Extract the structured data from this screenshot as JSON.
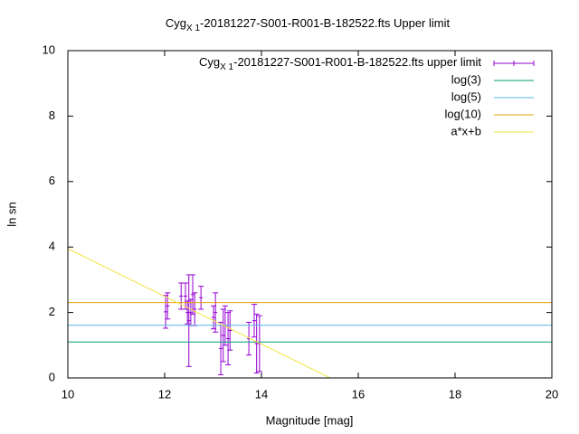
{
  "chart_data": {
    "type": "errorbar",
    "title": [
      "Cyg",
      "X 1",
      "-20181227-S001-R001-B-182522.fts Upper limit"
    ],
    "xlabel": "Magnitude [mag]",
    "ylabel": "ln sn",
    "xlim": [
      10,
      20
    ],
    "xticks": [
      10,
      12,
      14,
      16,
      18,
      20
    ],
    "ylim": [
      0,
      10
    ],
    "yticks": [
      0,
      2,
      4,
      6,
      8,
      10
    ],
    "legend": "top-right",
    "series": [
      {
        "name": [
          "Cyg",
          "X 1",
          "-20181227-S001-R001-B-182522.fts upper limit"
        ],
        "style": "errorbars",
        "color": "#9400d3",
        "x": [
          12.02,
          12.06,
          12.34,
          12.43,
          12.47,
          12.5,
          12.54,
          12.58,
          12.62,
          12.75,
          13.01,
          13.05,
          13.16,
          13.21,
          13.25,
          13.31,
          13.35,
          13.74,
          13.85,
          13.9,
          13.96
        ],
        "values": [
          2.02,
          2.2,
          2.5,
          2.5,
          2.0,
          1.75,
          2.0,
          2.55,
          2.1,
          2.45,
          1.85,
          2.0,
          0.9,
          1.3,
          1.6,
          1.2,
          1.45,
          1.2,
          1.75,
          1.05,
          1.05
        ],
        "errors": [
          0.5,
          0.4,
          0.4,
          0.4,
          0.35,
          1.4,
          0.4,
          0.6,
          0.5,
          0.35,
          0.35,
          0.6,
          0.8,
          0.8,
          0.6,
          0.8,
          0.6,
          0.5,
          0.5,
          0.9,
          0.85
        ]
      },
      {
        "name": "log(3)",
        "style": "line",
        "color": "#009e73",
        "x": [
          10,
          20
        ],
        "values": [
          1.0986,
          1.0986
        ]
      },
      {
        "name": "log(5)",
        "style": "line",
        "color": "#56b4e9",
        "x": [
          10,
          20
        ],
        "values": [
          1.6094,
          1.6094
        ]
      },
      {
        "name": "log(10)",
        "style": "line",
        "color": "#e69f00",
        "x": [
          10,
          20
        ],
        "values": [
          2.3026,
          2.3026
        ]
      },
      {
        "name": "a*x+b",
        "style": "line",
        "color": "#f0e442",
        "x": [
          10,
          15.42
        ],
        "values": [
          3.95,
          0
        ]
      }
    ]
  }
}
